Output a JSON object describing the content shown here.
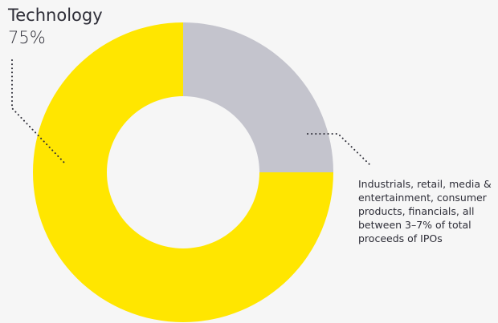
{
  "chart_data": {
    "type": "donut",
    "categories": [
      "Technology",
      "Industrials, retail, media & entertainment, consumer products, financials, all between 3–7% of total proceeds of IPOs"
    ],
    "values": [
      75,
      25
    ],
    "value_labels": [
      "75%",
      null
    ],
    "colors": [
      "#ffe600",
      "#c4c4cd"
    ]
  }
}
